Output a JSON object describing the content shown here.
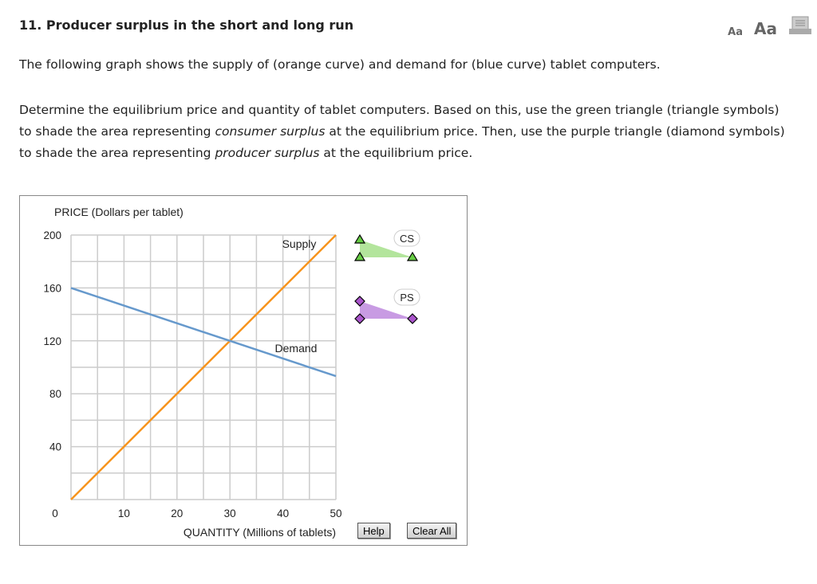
{
  "title": "11. Producer surplus in the short and long run",
  "intro": "The following graph shows the supply of (orange curve) and demand for (blue curve) tablet computers.",
  "instructions": {
    "a": "Determine the equilibrium price and quantity of tablet computers. Based on this, use the green triangle (triangle symbols) to shade the area representing ",
    "a_em": "consumer surplus",
    "b": " at the equilibrium price. Then, use the purple triangle (diamond symbols) to shade the area representing ",
    "b_em": "producer surplus",
    "c": " at the equilibrium price."
  },
  "toolbar": {
    "small_font": "Aa",
    "large_font": "Aa",
    "print_icon": "print-icon"
  },
  "buttons": {
    "help": "Help",
    "clear_all": "Clear All"
  },
  "palette": {
    "cs_label": "CS",
    "ps_label": "PS",
    "cs_color": "#b3e59c",
    "ps_color": "#c89be3"
  },
  "chart_data": {
    "type": "line",
    "ylabel": "PRICE (Dollars per tablet)",
    "xlabel": "QUANTITY (Millions of tablets)",
    "xlim": [
      0,
      50
    ],
    "ylim": [
      0,
      200
    ],
    "xticks": [
      "0",
      "10",
      "20",
      "30",
      "40",
      "50"
    ],
    "yticks": [
      "40",
      "80",
      "120",
      "160",
      "200"
    ],
    "grid": true,
    "series": [
      {
        "name": "Supply",
        "color": "#f7941d",
        "x": [
          0,
          50
        ],
        "y": [
          0,
          200
        ]
      },
      {
        "name": "Demand",
        "color": "#6699cc",
        "x": [
          0,
          50
        ],
        "y": [
          160,
          93.3
        ]
      }
    ]
  }
}
